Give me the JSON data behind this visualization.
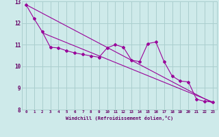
{
  "xlabel": "Windchill (Refroidissement éolien,°C)",
  "bg_color": "#ceeaea",
  "grid_color": "#aacece",
  "line_color": "#990099",
  "text_color": "#660066",
  "xtick_labels": [
    "0",
    "1",
    "2",
    "3",
    "4",
    "5",
    "6",
    "7",
    "8",
    "9",
    "10",
    "11",
    "12",
    "13",
    "14",
    "15",
    "16",
    "17",
    "18",
    "19",
    "20",
    "21",
    "22",
    "23"
  ],
  "ylim": [
    8,
    13
  ],
  "xlim": [
    -0.5,
    23.5
  ],
  "yticks": [
    8,
    9,
    10,
    11,
    12,
    13
  ],
  "scatter_x": [
    0,
    1,
    2,
    3,
    4,
    5,
    6,
    7,
    8,
    9,
    10,
    11,
    12,
    13,
    14,
    15,
    16,
    17,
    18,
    19,
    20,
    21,
    22,
    23
  ],
  "scatter_y": [
    12.85,
    12.2,
    11.6,
    10.88,
    10.85,
    10.72,
    10.62,
    10.55,
    10.48,
    10.42,
    10.85,
    11.0,
    10.88,
    10.28,
    10.22,
    11.05,
    11.12,
    10.22,
    9.55,
    9.32,
    9.28,
    8.48,
    8.38,
    8.35
  ],
  "trend1_x": [
    0,
    23
  ],
  "trend1_y": [
    12.85,
    8.3
  ],
  "trend2_x": [
    2,
    23
  ],
  "trend2_y": [
    11.55,
    8.35
  ],
  "grid_xticks": [
    0,
    1,
    2,
    3,
    4,
    5,
    6,
    7,
    8,
    9,
    10,
    11,
    12,
    13,
    14,
    15,
    16,
    17,
    18,
    19,
    20,
    21,
    22,
    23
  ]
}
